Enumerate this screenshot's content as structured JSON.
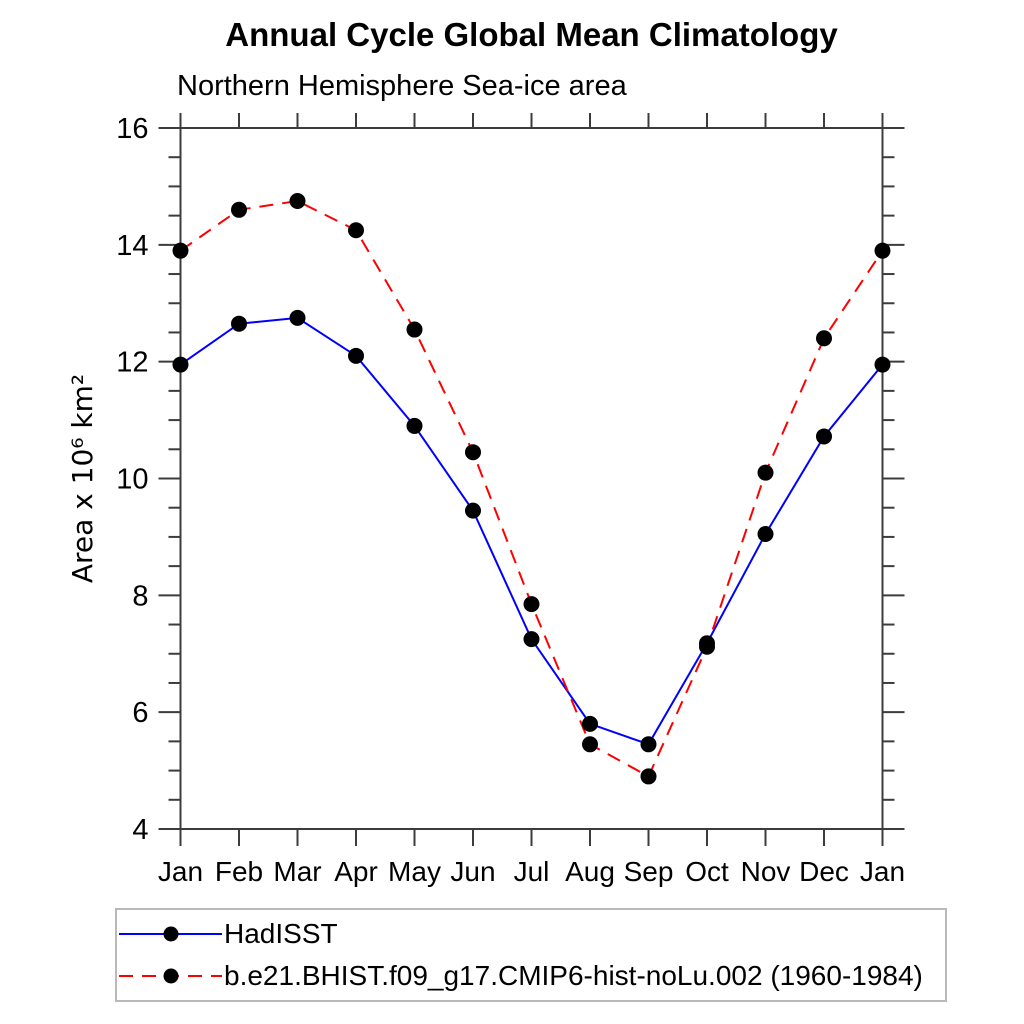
{
  "chart_data": {
    "type": "line",
    "title": "Annual Cycle Global Mean Climatology",
    "subtitle": "Northern Hemisphere Sea-ice area",
    "ylabel": "Area x 10⁶ km²",
    "xlabel": "",
    "ylim": [
      4,
      16
    ],
    "ytick_major_interval": 2,
    "ytick_minor_interval": 0.5,
    "grid": false,
    "legend_position": "bottom-left-box",
    "categories": [
      "Jan",
      "Feb",
      "Mar",
      "Apr",
      "May",
      "Jun",
      "Jul",
      "Aug",
      "Sep",
      "Oct",
      "Nov",
      "Dec",
      "Jan"
    ],
    "series": [
      {
        "name": "HadISST",
        "color": "#0000ff",
        "line_style": "solid",
        "marker": "filled-circle",
        "marker_color": "#000000",
        "values": [
          11.95,
          12.65,
          12.75,
          12.1,
          10.9,
          9.45,
          7.25,
          5.8,
          5.45,
          7.18,
          9.05,
          10.72,
          11.95
        ]
      },
      {
        "name": "b.e21.BHIST.f09_g17.CMIP6-hist-noLu.002 (1960-1984)",
        "color": "#ff0000",
        "line_style": "dashed",
        "marker": "filled-circle",
        "marker_color": "#000000",
        "values": [
          13.9,
          14.6,
          14.75,
          14.25,
          12.55,
          10.45,
          7.85,
          5.45,
          4.9,
          7.12,
          10.1,
          12.4,
          13.9
        ]
      }
    ]
  },
  "colors": {
    "background": "#ffffff",
    "axis": "#3c3c3c",
    "text": "#000000",
    "legend_border": "#b9b9b9"
  }
}
